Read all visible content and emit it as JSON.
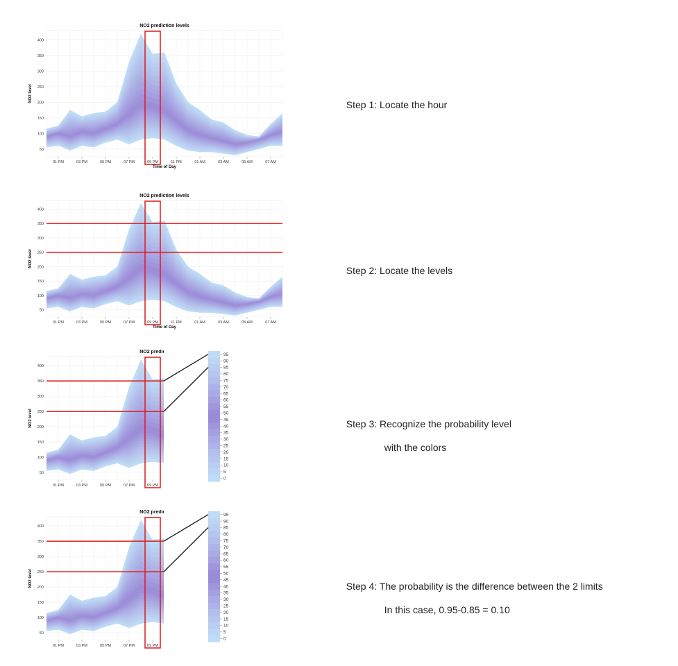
{
  "steps": [
    {
      "label": "Step 1: Locate the hour",
      "label2": ""
    },
    {
      "label": "Step 2: Locate the levels",
      "label2": ""
    },
    {
      "label": "Step 3: Recognize the probability level",
      "label2": "with the colors"
    },
    {
      "label": "Step 4: The probability is the difference between the 2 limits",
      "label2": "In this case, 0.95-0.85 = 0.10"
    }
  ],
  "chart_data": {
    "type": "area",
    "title": "NO2 prediction levels",
    "xlabel": "Time of Day",
    "ylabel": "NO2 level",
    "ylim": [
      25,
      430
    ],
    "yticks": [
      50,
      100,
      150,
      200,
      250,
      300,
      350,
      400
    ],
    "x": [
      "12 PM",
      "01 PM",
      "02 PM",
      "03 PM",
      "04 PM",
      "05 PM",
      "06 PM",
      "07 PM",
      "08 PM",
      "09 PM",
      "10 PM",
      "11 PM",
      "12 AM",
      "01 AM",
      "02 AM",
      "03 AM",
      "04 AM",
      "05 AM",
      "06 AM",
      "07 AM",
      "08 AM"
    ],
    "xticks": [
      "01 PM",
      "03 PM",
      "05 PM",
      "07 PM",
      "09 PM",
      "11 PM",
      "01 AM",
      "03 AM",
      "05 AM",
      "07 AM"
    ],
    "median": [
      90,
      100,
      90,
      105,
      100,
      115,
      130,
      160,
      190,
      185,
      170,
      140,
      110,
      95,
      85,
      75,
      65,
      70,
      80,
      95,
      105
    ],
    "lower": [
      55,
      60,
      45,
      60,
      55,
      70,
      80,
      65,
      80,
      85,
      80,
      60,
      45,
      40,
      40,
      35,
      30,
      40,
      50,
      60,
      60
    ],
    "upper": [
      115,
      125,
      175,
      155,
      165,
      170,
      200,
      330,
      420,
      355,
      360,
      260,
      200,
      175,
      145,
      135,
      110,
      95,
      90,
      130,
      165
    ],
    "highlight_hour": "09 PM",
    "level_lines": [
      350,
      250
    ],
    "legend": {
      "title": "",
      "levels": [
        "95",
        "90",
        "85",
        "80",
        "75",
        "70",
        "65",
        "60",
        "55",
        "50",
        "45",
        "40",
        "35",
        "30",
        "25",
        "20",
        "15",
        "10",
        "5",
        "0"
      ]
    }
  }
}
